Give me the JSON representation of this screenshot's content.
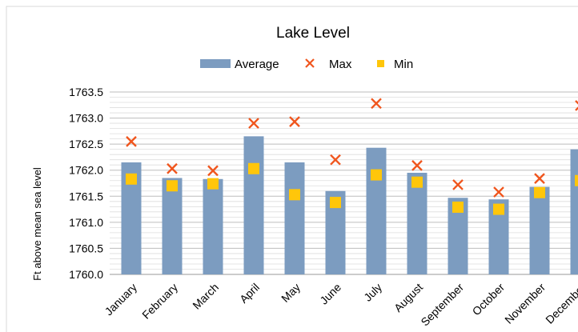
{
  "chart_data": {
    "type": "bar",
    "title": "Lake Level",
    "xlabel": "",
    "ylabel": "Ft above mean sea level",
    "categories": [
      "January",
      "February",
      "March",
      "April",
      "May",
      "June",
      "July",
      "August",
      "September",
      "October",
      "November",
      "December"
    ],
    "series": [
      {
        "name": "Average",
        "type": "bar",
        "color": "#7C9CC0",
        "values": [
          1762.15,
          1761.85,
          1761.83,
          1762.65,
          1762.15,
          1761.6,
          1762.43,
          1761.95,
          1761.47,
          1761.44,
          1761.68,
          1762.4
        ]
      },
      {
        "name": "Max",
        "type": "scatter",
        "marker": "x",
        "color": "#F0561E",
        "values": [
          1762.55,
          1762.03,
          1761.99,
          1762.9,
          1762.93,
          1762.2,
          1763.28,
          1762.09,
          1761.72,
          1761.58,
          1761.84,
          1763.24
        ]
      },
      {
        "name": "Min",
        "type": "scatter",
        "marker": "square",
        "color": "#FFC60A",
        "values": [
          1761.83,
          1761.7,
          1761.74,
          1762.03,
          1761.53,
          1761.38,
          1761.91,
          1761.77,
          1761.29,
          1761.25,
          1761.57,
          1761.8
        ]
      }
    ],
    "ylim": [
      1760.0,
      1763.5
    ],
    "yticks": [
      "1760.0",
      "1760.5",
      "1761.0",
      "1761.5",
      "1762.0",
      "1762.5",
      "1763.0",
      "1763.5"
    ],
    "minor_grid_step": 0.1,
    "grid": true,
    "legend_position": "top-center"
  }
}
